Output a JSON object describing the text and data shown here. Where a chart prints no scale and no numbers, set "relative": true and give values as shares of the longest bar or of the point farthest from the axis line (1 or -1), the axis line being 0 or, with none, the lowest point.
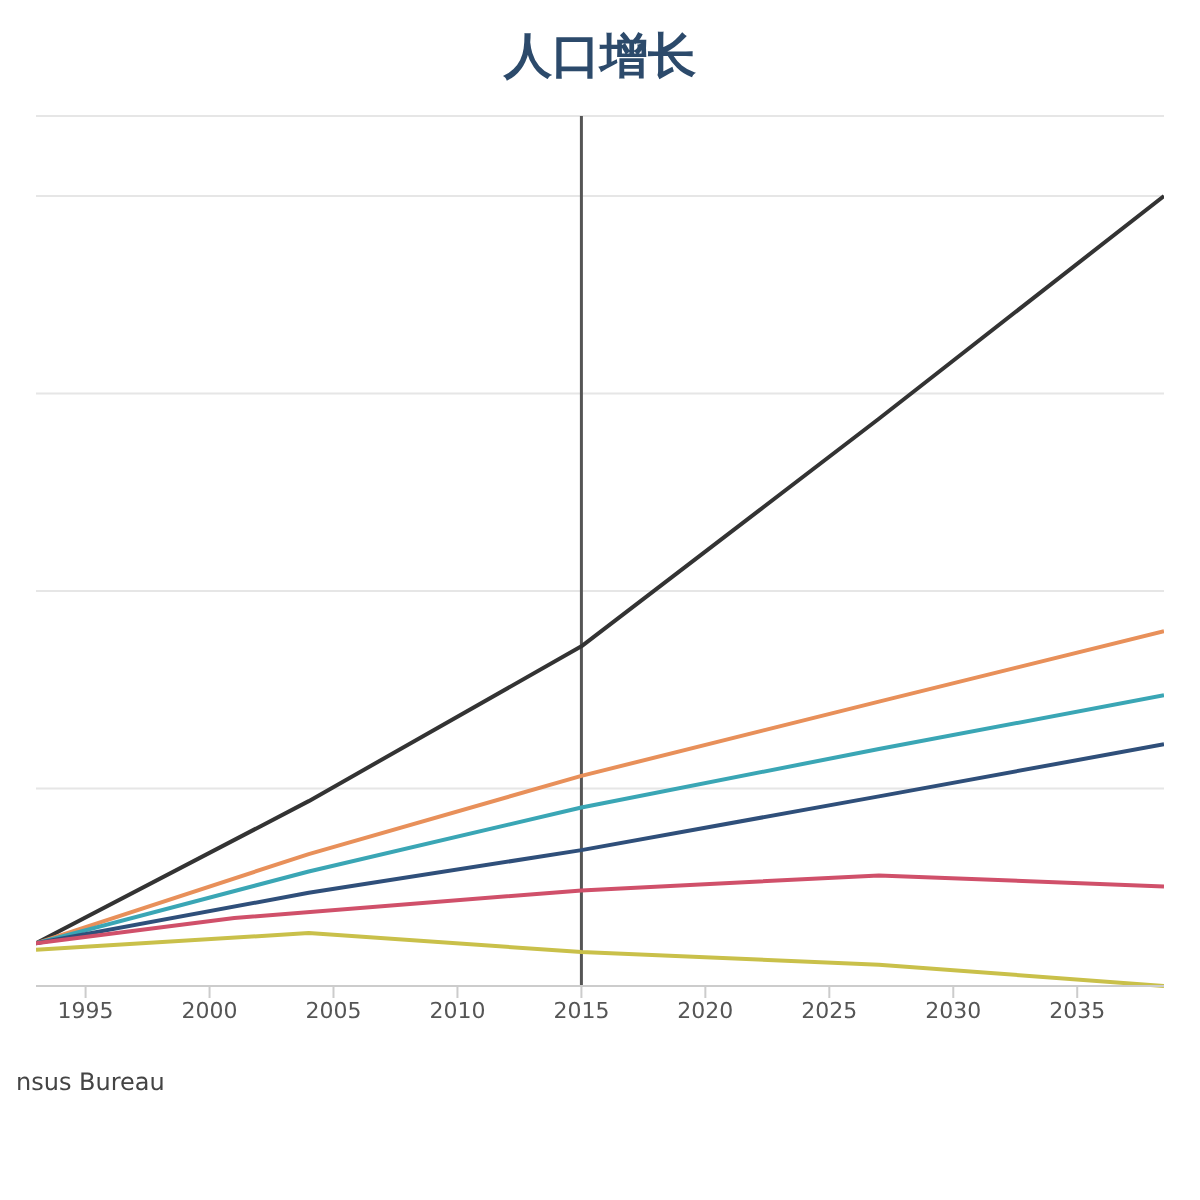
{
  "chart_data": {
    "type": "line",
    "title": "人口增长",
    "relative": true,
    "xlim": [
      1993,
      2038.5
    ],
    "xticks": [
      1995,
      2000,
      2005,
      2010,
      2015,
      2020,
      2025,
      2030,
      2035
    ],
    "grid": "y",
    "marker": "none",
    "line_style": "solid",
    "legend": false,
    "series": [
      {
        "color": "#333333",
        "x": [
          1993,
          2004,
          2015,
          2027,
          2038.5
        ],
        "values": [
          0.054,
          0.234,
          0.43,
          0.718,
          1.0
        ]
      },
      {
        "color": "#e8905a",
        "x": [
          1993,
          2004,
          2015,
          2027,
          2038.5
        ],
        "values": [
          0.054,
          0.167,
          0.266,
          0.36,
          0.449
        ]
      },
      {
        "color": "#3aa6b5",
        "x": [
          1993,
          2004,
          2015,
          2027,
          2038.5
        ],
        "values": [
          0.054,
          0.145,
          0.226,
          0.3,
          0.368
        ]
      },
      {
        "color": "#2f4f7a",
        "x": [
          1993,
          2004,
          2015,
          2027,
          2038.5
        ],
        "values": [
          0.054,
          0.118,
          0.172,
          0.24,
          0.306
        ]
      },
      {
        "color": "#d0506a",
        "x": [
          1993,
          2001,
          2015,
          2027,
          2038.5
        ],
        "values": [
          0.054,
          0.086,
          0.121,
          0.14,
          0.126
        ]
      },
      {
        "color": "#c9c04a",
        "x": [
          1993,
          2004,
          2015,
          2027,
          2038.5
        ],
        "values": [
          0.046,
          0.067,
          0.043,
          0.027,
          0
        ]
      }
    ],
    "ref_lines": [
      {
        "axis": "x",
        "value": 2015,
        "color": "#555555"
      }
    ],
    "annotations": [
      "nsus Bureau"
    ]
  }
}
